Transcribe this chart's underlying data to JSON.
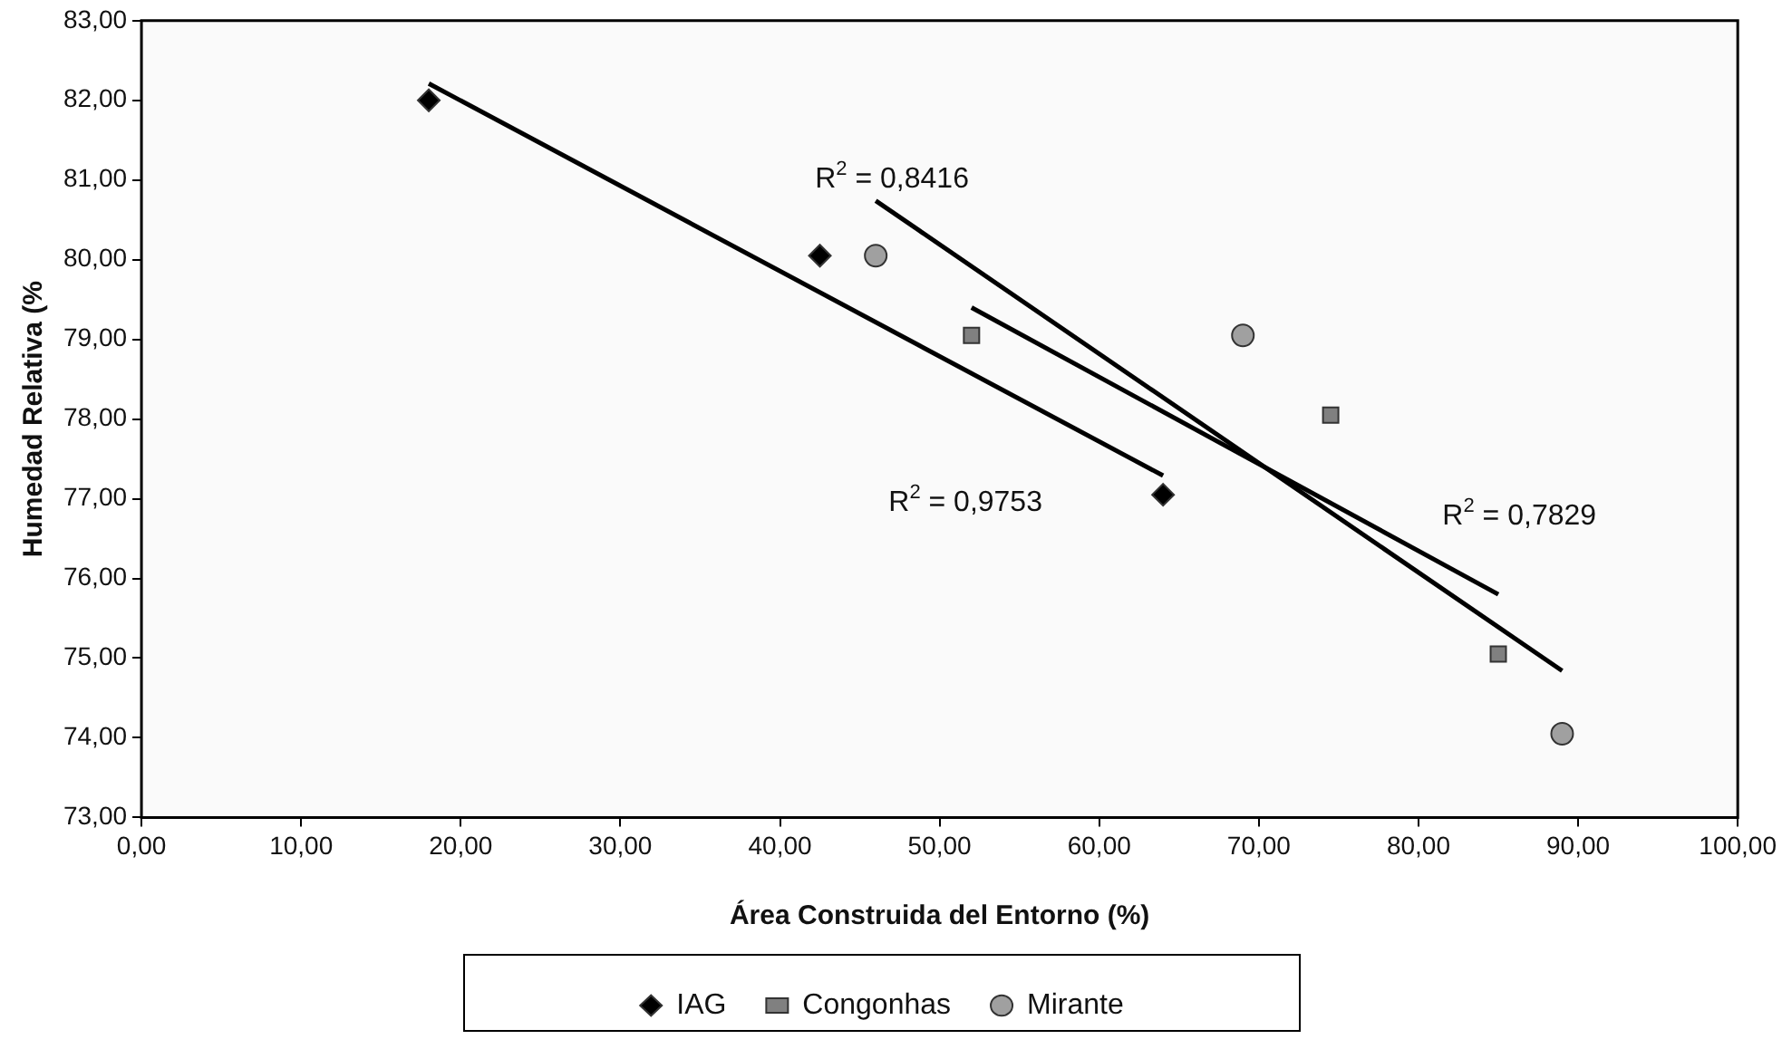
{
  "chart_data": {
    "type": "scatter",
    "xlabel": "Área Construida del Entorno (%)",
    "ylabel": "Humedad Relativa (%",
    "xlim": [
      0,
      100
    ],
    "xticks": [
      {
        "value": 0,
        "label": "0,00"
      },
      {
        "value": 10,
        "label": "10,00"
      },
      {
        "value": 20,
        "label": "20,00"
      },
      {
        "value": 30,
        "label": "30,00"
      },
      {
        "value": 40,
        "label": "40,00"
      },
      {
        "value": 50,
        "label": "50,00"
      },
      {
        "value": 60,
        "label": "60,00"
      },
      {
        "value": 70,
        "label": "70,00"
      },
      {
        "value": 80,
        "label": "80,00"
      },
      {
        "value": 90,
        "label": "90,00"
      },
      {
        "value": 100,
        "label": "100,00"
      }
    ],
    "ylim": [
      73,
      83
    ],
    "yticks": [
      {
        "value": 73,
        "label": "73,00"
      },
      {
        "value": 74,
        "label": "74,00"
      },
      {
        "value": 75,
        "label": "75,00"
      },
      {
        "value": 76,
        "label": "76,00"
      },
      {
        "value": 77,
        "label": "77,00"
      },
      {
        "value": 78,
        "label": "78,00"
      },
      {
        "value": 79,
        "label": "79,00"
      },
      {
        "value": 80,
        "label": "80,00"
      },
      {
        "value": 81,
        "label": "81,00"
      },
      {
        "value": 82,
        "label": "82,00"
      },
      {
        "value": 83,
        "label": "83,00"
      }
    ],
    "grid": false,
    "legend": "bottom",
    "series": [
      {
        "name": "IAG",
        "color": "#000000",
        "marker": "diamond",
        "x": [
          18,
          42.5,
          64
        ],
        "values": [
          82.0,
          80.05,
          77.05
        ]
      },
      {
        "name": "Congonhas",
        "color": "#808080",
        "marker": "square",
        "x": [
          52,
          74.5,
          85
        ],
        "values": [
          79.05,
          78.05,
          75.05
        ]
      },
      {
        "name": "Mirante",
        "color": "#a0a0a0",
        "marker": "circle",
        "x": [
          46,
          69,
          89
        ],
        "values": [
          80.05,
          79.05,
          74.05
        ]
      },
      {
        "type": "line",
        "color": "#000000",
        "marker": "none",
        "x": [
          18,
          64
        ],
        "values": [
          82.21,
          77.29
        ]
      },
      {
        "type": "line",
        "color": "#000000",
        "marker": "none",
        "x": [
          52,
          85
        ],
        "values": [
          79.4,
          75.8
        ]
      },
      {
        "type": "line",
        "color": "#000000",
        "marker": "none",
        "x": [
          46,
          89
        ],
        "values": [
          80.74,
          74.84
        ]
      }
    ],
    "annotations": [
      "R$^{2}$ = 0,8416",
      "R$^{2}$ = 0,9753",
      "R$^{2}$ = 0,7829"
    ]
  }
}
